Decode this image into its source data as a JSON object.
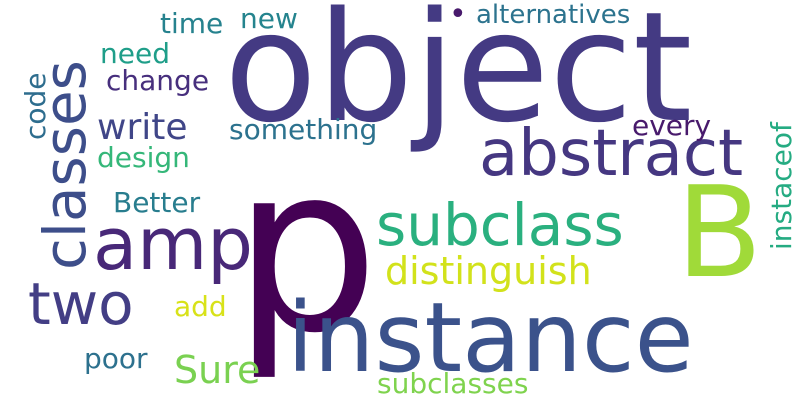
{
  "words": {
    "p": "p",
    "object": "object",
    "instance": "instance",
    "B": "B",
    "amp": "amp",
    "abstract": "abstract",
    "subclass": "subclass",
    "two": "two",
    "classes": "classes",
    "distinguish": "distinguish",
    "write": "write",
    "something": "something",
    "every": "every",
    "change": "change",
    "need": "need",
    "time": "time",
    "new": "new",
    "alternatives": "alternatives",
    "design": "design",
    "Better": "Better",
    "add": "add",
    "poor": "poor",
    "Sure": "Sure",
    "subclasses": "subclasses",
    "code": "code",
    "instaceof": "instaceof",
    "dot": "•"
  },
  "colors": {
    "background": "#ffffff",
    "palette": "viridis"
  }
}
